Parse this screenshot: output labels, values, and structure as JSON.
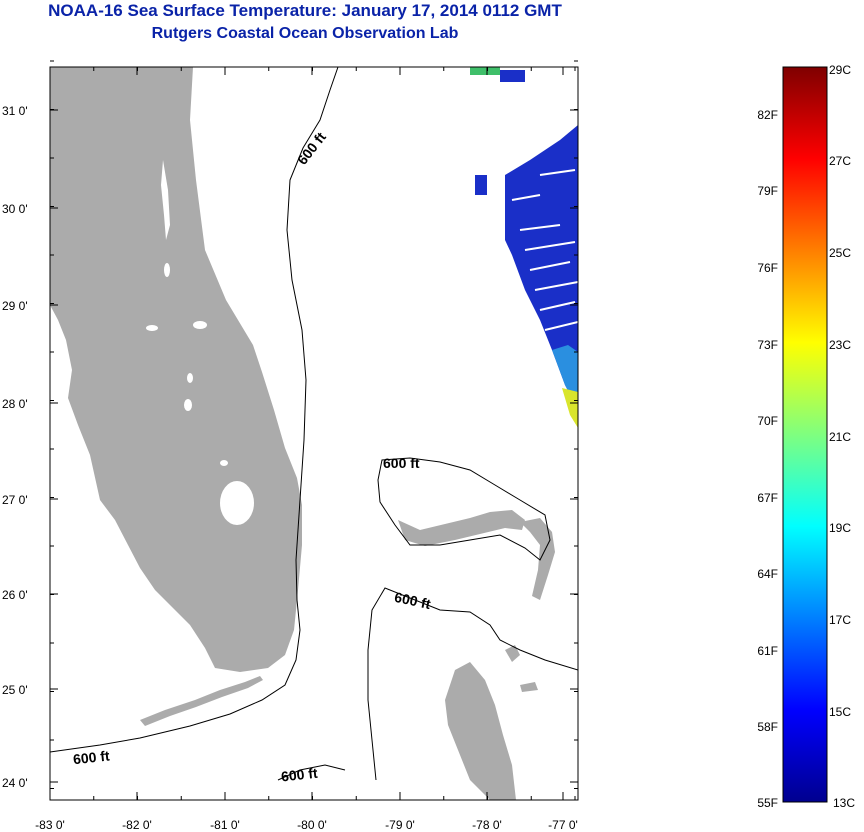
{
  "header": {
    "title": "NOAA-16 Sea Surface Temperature:  January 17, 2014 0112 GMT",
    "subtitle": "Rutgers Coastal Ocean Observation Lab"
  },
  "map": {
    "lon_ticks": [
      "-83 0'",
      "-82 0'",
      "-81 0'",
      "-80 0'",
      "-79 0'",
      "-78 0'",
      "-77 0'"
    ],
    "lat_ticks": [
      "31 0'",
      "30 0'",
      "29 0'",
      "28 0'",
      "27 0'",
      "26 0'",
      "25 0'",
      "24 0'"
    ],
    "contour_label": "600 ft",
    "land_color": "#ababab"
  },
  "colorbar": {
    "celsius": [
      "29C",
      "27C",
      "25C",
      "23C",
      "21C",
      "19C",
      "17C",
      "15C",
      "13C"
    ],
    "fahrenheit": [
      "82F",
      "79F",
      "76F",
      "73F",
      "70F",
      "67F",
      "64F",
      "61F",
      "58F",
      "55F"
    ],
    "colors": [
      "#00008f",
      "#0000ff",
      "#007fff",
      "#00ffff",
      "#7fff7f",
      "#ffff00",
      "#ff7f00",
      "#ff0000",
      "#7f0000"
    ]
  }
}
